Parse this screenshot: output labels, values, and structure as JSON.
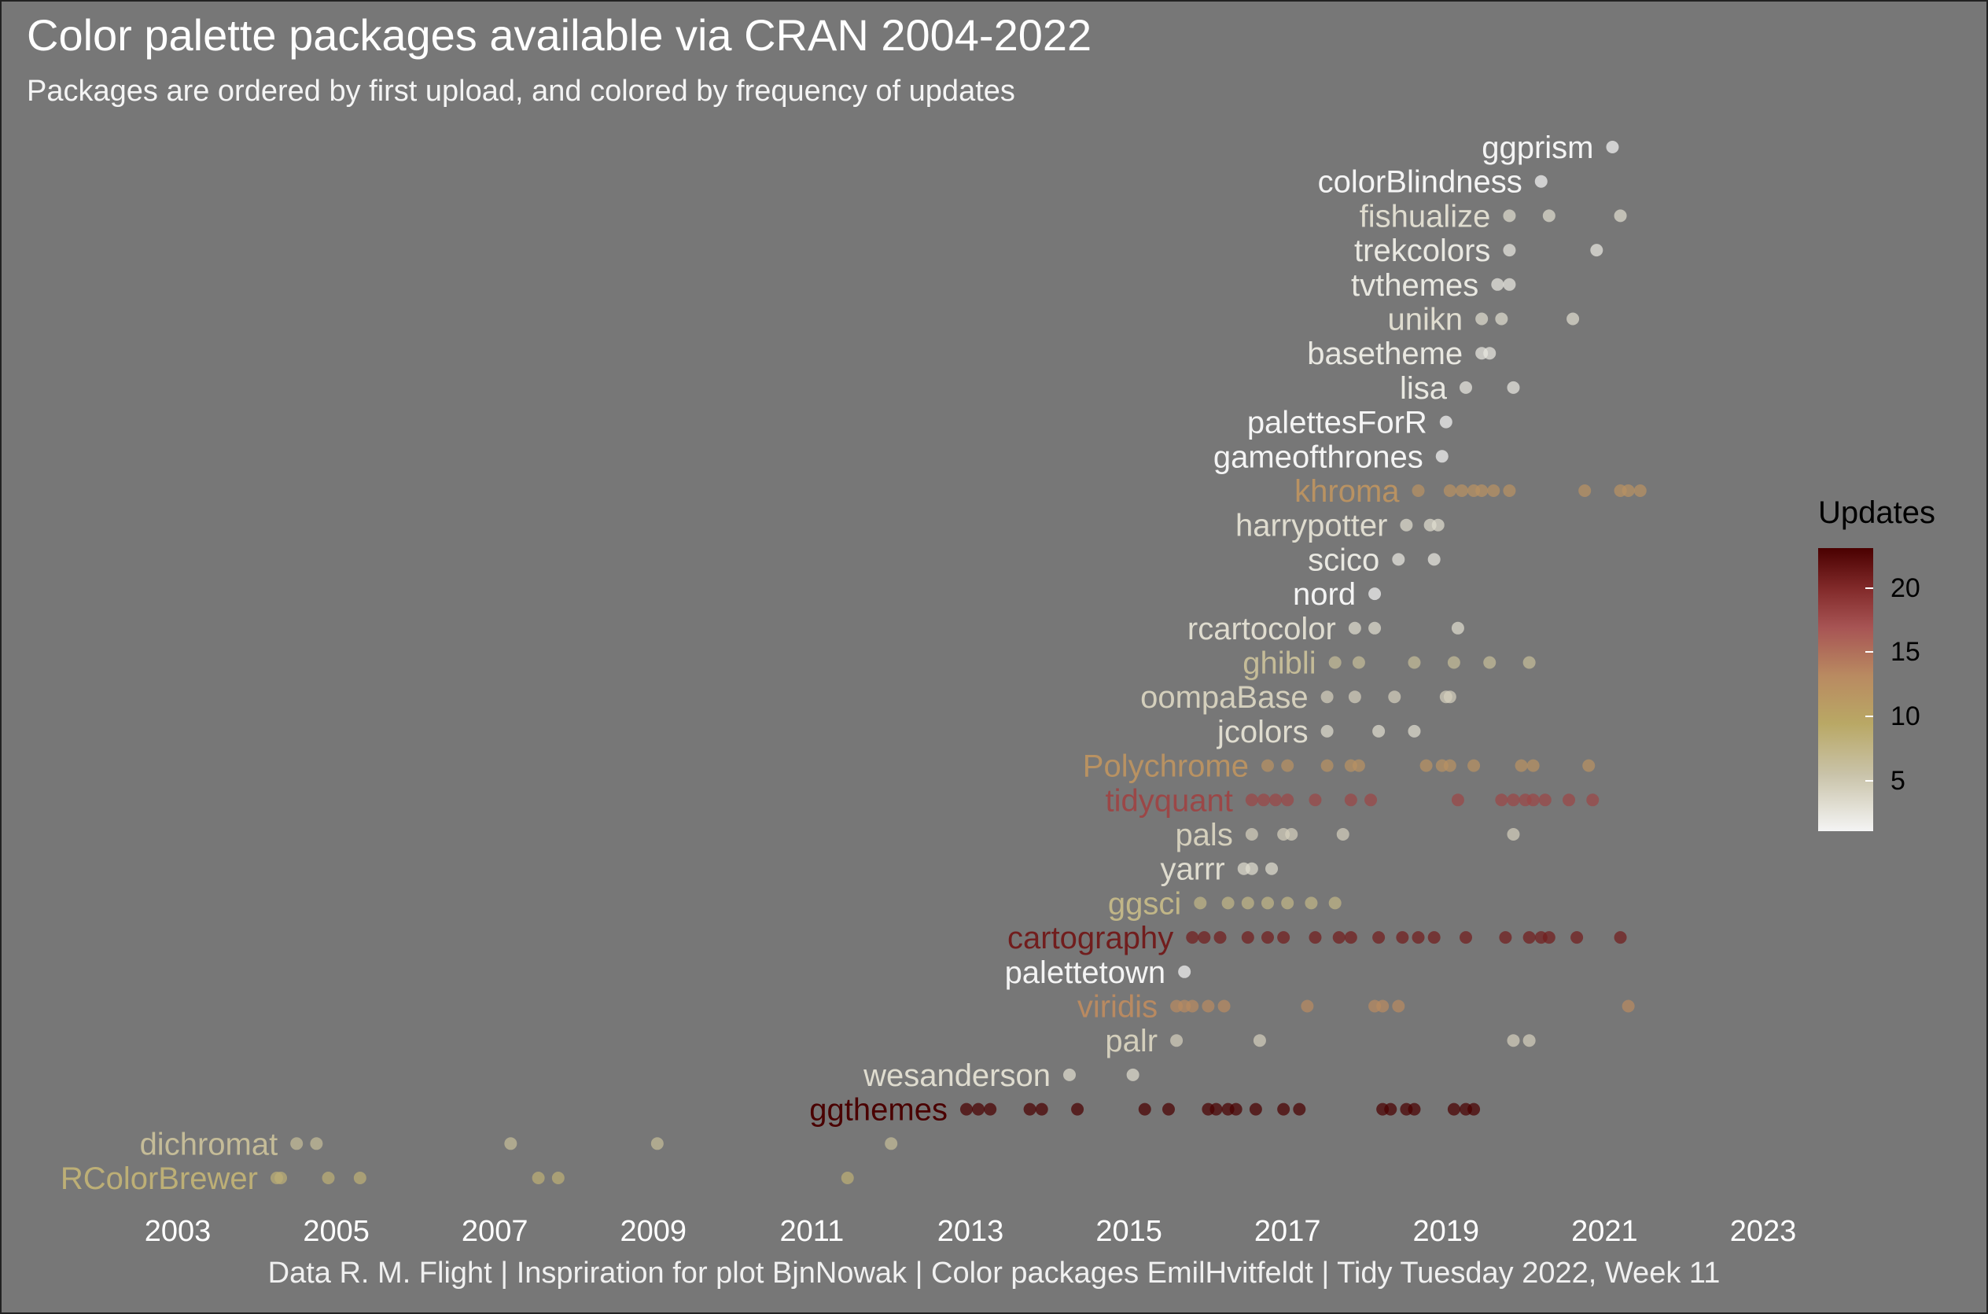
{
  "chart_data": {
    "type": "scatter",
    "title": "Color palette packages available via CRAN 2004-2022",
    "subtitle": "Packages are ordered by first upload, and colored by frequency of updates",
    "caption": "Data R. M. Flight | Inspriration for plot BjnNowak | Color packages EmilHvitfeldt | Tidy Tuesday 2022, Week 11",
    "xlim": [
      2001.1,
      2024.9
    ],
    "x_ticks": [
      "2003",
      "2005",
      "2007",
      "2009",
      "2011",
      "2013",
      "2015",
      "2017",
      "2019",
      "2021",
      "2023"
    ],
    "legend": {
      "title": "Updates",
      "ticks": [
        "20",
        "15",
        "10",
        "5"
      ],
      "range": [
        1,
        23
      ],
      "position": "right"
    },
    "packages": [
      {
        "name": "RColorBrewer",
        "updates": 8,
        "dates": [
          2004.25,
          2004.3,
          2004.9,
          2005.3,
          2007.55,
          2007.8,
          2011.45
        ]
      },
      {
        "name": "dichromat",
        "updates": 6,
        "dates": [
          2004.5,
          2004.75,
          2007.2,
          2009.05,
          2012.0
        ]
      },
      {
        "name": "ggthemes",
        "updates": 23,
        "dates": [
          2012.95,
          2013.1,
          2013.25,
          2013.75,
          2013.9,
          2014.35,
          2015.2,
          2015.5,
          2016.0,
          2016.1,
          2016.25,
          2016.35,
          2016.6,
          2016.95,
          2017.15,
          2018.2,
          2018.3,
          2018.5,
          2018.6,
          2019.1,
          2019.25,
          2019.35
        ]
      },
      {
        "name": "wesanderson",
        "updates": 3,
        "dates": [
          2014.25,
          2015.05
        ]
      },
      {
        "name": "palr",
        "updates": 4,
        "dates": [
          2015.6,
          2016.65,
          2019.85,
          2020.05
        ]
      },
      {
        "name": "viridis",
        "updates": 13,
        "dates": [
          2015.6,
          2015.7,
          2015.8,
          2016.0,
          2016.2,
          2017.25,
          2018.1,
          2018.2,
          2018.4,
          2021.3
        ]
      },
      {
        "name": "palettetown",
        "updates": 1,
        "dates": [
          2015.7
        ]
      },
      {
        "name": "cartography",
        "updates": 21,
        "dates": [
          2015.8,
          2015.95,
          2016.15,
          2016.5,
          2016.75,
          2016.95,
          2017.35,
          2017.65,
          2017.8,
          2018.15,
          2018.45,
          2018.65,
          2018.85,
          2019.25,
          2019.75,
          2020.05,
          2020.2,
          2020.3,
          2020.65,
          2021.2
        ]
      },
      {
        "name": "ggsci",
        "updates": 7,
        "dates": [
          2015.9,
          2016.25,
          2016.5,
          2016.75,
          2017.0,
          2017.3,
          2017.6
        ]
      },
      {
        "name": "yarrr",
        "updates": 3,
        "dates": [
          2016.45,
          2016.55,
          2016.8
        ]
      },
      {
        "name": "pals",
        "updates": 4,
        "dates": [
          2016.55,
          2016.95,
          2017.05,
          2017.7,
          2019.85
        ]
      },
      {
        "name": "tidyquant",
        "updates": 18,
        "dates": [
          2016.55,
          2016.7,
          2016.85,
          2017.0,
          2017.35,
          2017.8,
          2018.05,
          2019.15,
          2019.7,
          2019.85,
          2020.0,
          2020.1,
          2020.25,
          2020.55,
          2020.85
        ]
      },
      {
        "name": "Polychrome",
        "updates": 12,
        "dates": [
          2016.75,
          2017.0,
          2017.5,
          2017.8,
          2017.9,
          2018.75,
          2018.95,
          2019.05,
          2019.35,
          2019.95,
          2020.1,
          2020.8
        ]
      },
      {
        "name": "jcolors",
        "updates": 3,
        "dates": [
          2017.5,
          2018.15,
          2018.6
        ]
      },
      {
        "name": "oompaBase",
        "updates": 4,
        "dates": [
          2017.5,
          2017.85,
          2018.35,
          2019.0,
          2019.05
        ]
      },
      {
        "name": "ghibli",
        "updates": 6,
        "dates": [
          2017.6,
          2017.9,
          2018.6,
          2019.1,
          2019.55,
          2020.05
        ]
      },
      {
        "name": "rcartocolor",
        "updates": 3,
        "dates": [
          2017.85,
          2018.1,
          2019.15
        ]
      },
      {
        "name": "nord",
        "updates": 1,
        "dates": [
          2018.1
        ]
      },
      {
        "name": "scico",
        "updates": 2,
        "dates": [
          2018.4,
          2018.85
        ]
      },
      {
        "name": "harrypotter",
        "updates": 3,
        "dates": [
          2018.5,
          2018.8,
          2018.9
        ]
      },
      {
        "name": "khroma",
        "updates": 12,
        "dates": [
          2018.65,
          2019.05,
          2019.2,
          2019.35,
          2019.45,
          2019.6,
          2019.8,
          2020.75,
          2021.2,
          2021.3,
          2021.45
        ]
      },
      {
        "name": "gameofthrones",
        "updates": 1,
        "dates": [
          2018.95
        ]
      },
      {
        "name": "palettesForR",
        "updates": 1,
        "dates": [
          2019.0
        ]
      },
      {
        "name": "lisa",
        "updates": 2,
        "dates": [
          2019.25,
          2019.85
        ]
      },
      {
        "name": "basetheme",
        "updates": 2,
        "dates": [
          2019.45,
          2019.55
        ]
      },
      {
        "name": "unikn",
        "updates": 3,
        "dates": [
          2019.45,
          2019.7,
          2020.6
        ]
      },
      {
        "name": "tvthemes",
        "updates": 2,
        "dates": [
          2019.65,
          2019.8
        ]
      },
      {
        "name": "trekcolors",
        "updates": 2,
        "dates": [
          2019.8,
          2020.9
        ]
      },
      {
        "name": "fishualize",
        "updates": 3,
        "dates": [
          2019.8,
          2020.3,
          2021.2
        ]
      },
      {
        "name": "colorBlindness",
        "updates": 1,
        "dates": [
          2020.2
        ]
      },
      {
        "name": "ggprism",
        "updates": 1,
        "dates": [
          2021.1
        ]
      }
    ]
  }
}
